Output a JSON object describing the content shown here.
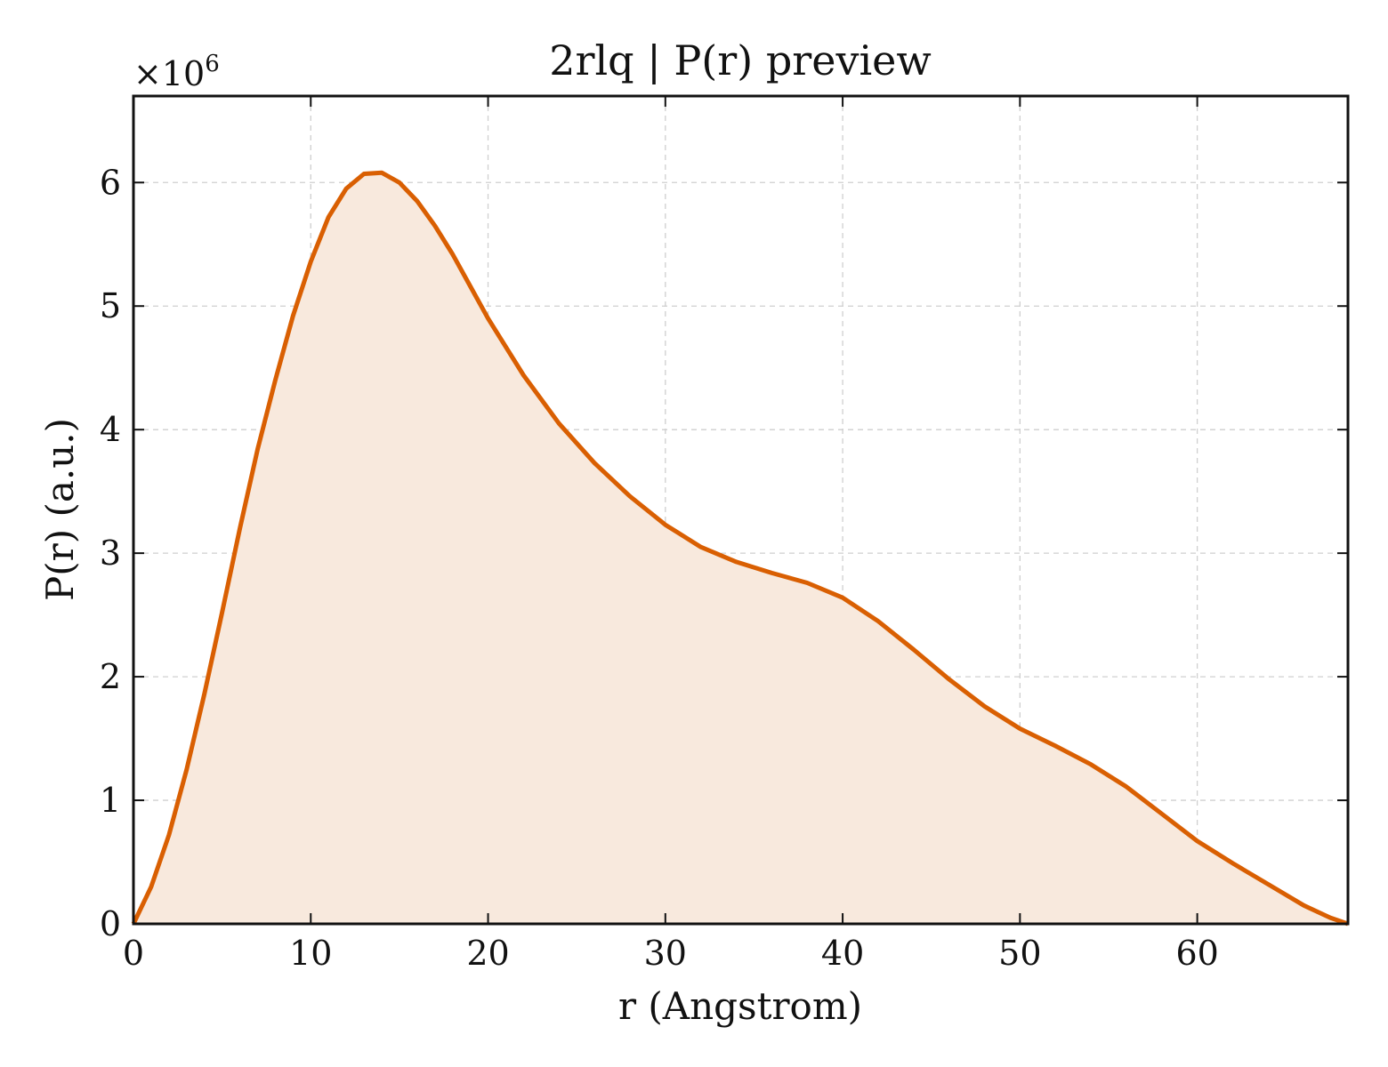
{
  "chart_data": {
    "type": "area",
    "title": "2rlq | P(r) preview",
    "xlabel": "r (Angstrom)",
    "ylabel": "P(r) (a.u.)",
    "y_scale_label": "×10",
    "y_scale_exponent": "6",
    "xlim": [
      0,
      68.5
    ],
    "ylim": [
      0,
      6.7
    ],
    "x_ticks": [
      0,
      10,
      20,
      30,
      40,
      50,
      60
    ],
    "y_ticks": [
      0,
      1,
      2,
      3,
      4,
      5,
      6
    ],
    "grid": true,
    "line_color": "#d95f02",
    "fill_color": "#f8e9dd",
    "series": [
      {
        "x": [
          0,
          1,
          2,
          3,
          4,
          5,
          6,
          7,
          8,
          9,
          10,
          11,
          12,
          13,
          14,
          15,
          16,
          17,
          18,
          19,
          20,
          22,
          24,
          26,
          28,
          30,
          32,
          34,
          36,
          38,
          40,
          42,
          44,
          46,
          48,
          50,
          52,
          54,
          56,
          58,
          60,
          62,
          64,
          66,
          67.5,
          68.5
        ],
        "y": [
          0,
          0.3,
          0.72,
          1.25,
          1.86,
          2.52,
          3.2,
          3.84,
          4.4,
          4.92,
          5.36,
          5.72,
          5.95,
          6.07,
          6.08,
          6.0,
          5.85,
          5.65,
          5.42,
          5.16,
          4.9,
          4.44,
          4.05,
          3.73,
          3.46,
          3.23,
          3.05,
          2.93,
          2.84,
          2.76,
          2.64,
          2.45,
          2.22,
          1.98,
          1.76,
          1.58,
          1.44,
          1.29,
          1.11,
          0.89,
          0.67,
          0.49,
          0.32,
          0.15,
          0.05,
          0.0
        ]
      }
    ]
  }
}
